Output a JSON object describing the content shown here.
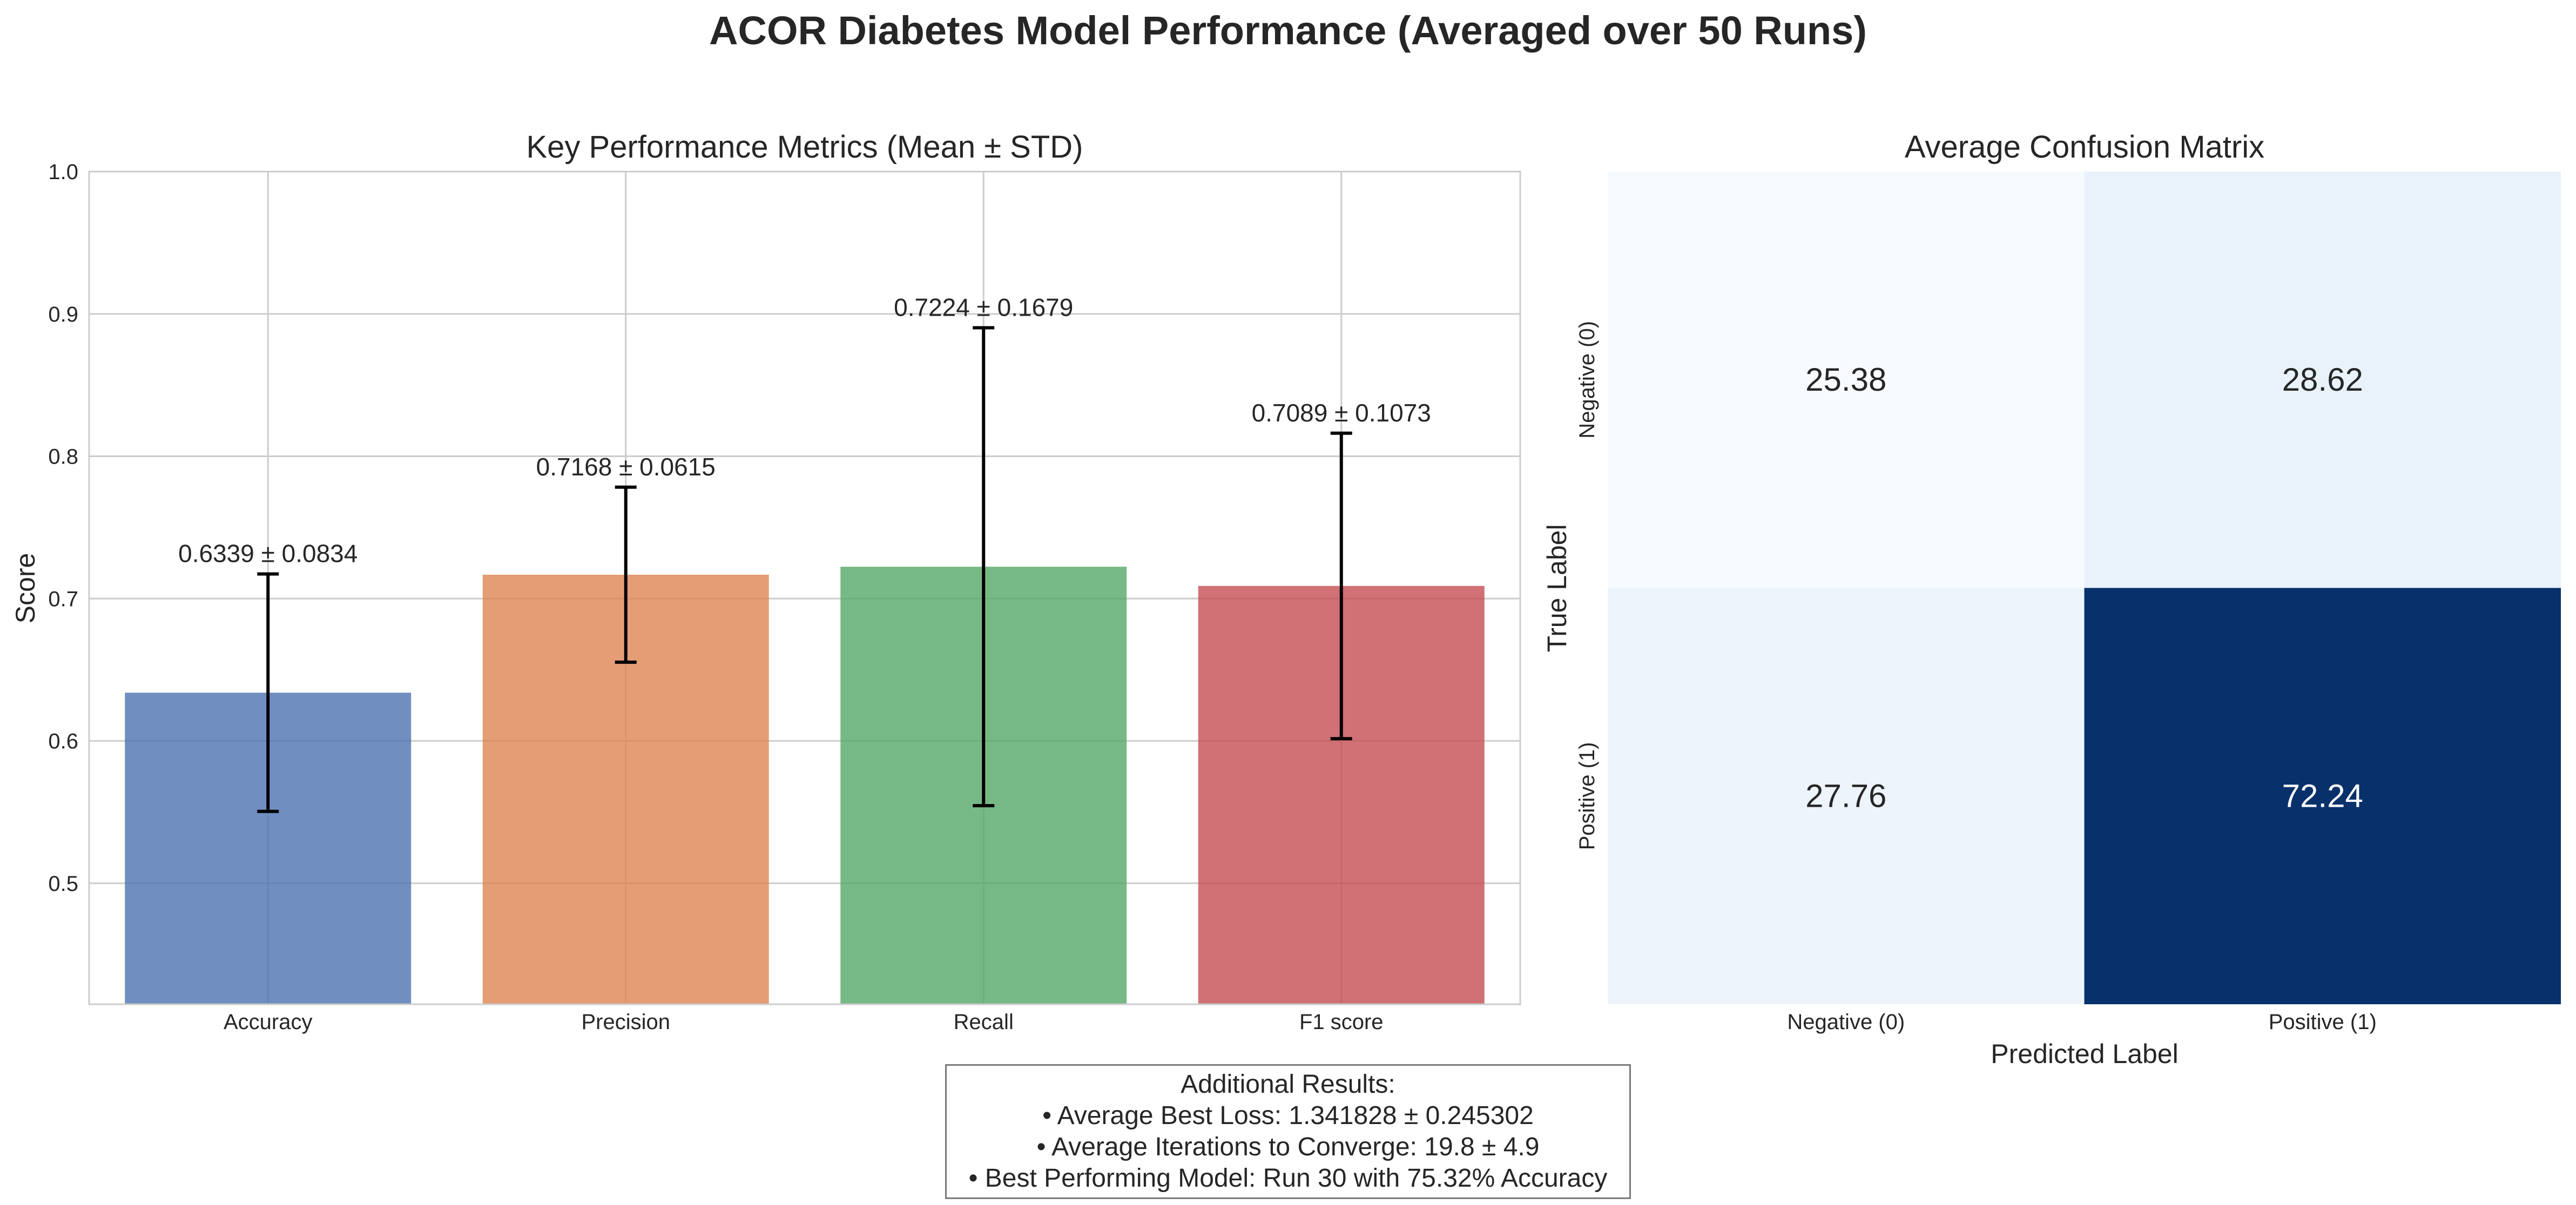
{
  "figure": {
    "title": "ACOR Diabetes Model Performance (Averaged over 50 Runs)"
  },
  "chart_data": [
    {
      "type": "bar",
      "title": "Key Performance Metrics (Mean ± STD)",
      "xlabel": "",
      "ylabel": "Score",
      "categories": [
        "Accuracy",
        "Precision",
        "Recall",
        "F1 score"
      ],
      "values": [
        0.6339,
        0.7168,
        0.7224,
        0.7089
      ],
      "errors": [
        0.0834,
        0.0615,
        0.1679,
        0.1073
      ],
      "data_labels": [
        "0.6339 ± 0.0834",
        "0.7168 ± 0.0615",
        "0.7224 ± 0.1679",
        "0.7089 ± 0.1073"
      ],
      "colors": [
        "#4c72b0",
        "#dd8452",
        "#55a868",
        "#c44e52"
      ],
      "ylim": [
        0.415,
        1.0
      ],
      "yticks": [
        0.5,
        0.6,
        0.7,
        0.8,
        0.9,
        1.0
      ],
      "ytick_labels": [
        "0.5",
        "0.6",
        "0.7",
        "0.8",
        "0.9",
        "1.0"
      ],
      "grid": true
    },
    {
      "type": "heatmap",
      "title": "Average Confusion Matrix",
      "xlabel": "Predicted Label",
      "ylabel": "True Label",
      "x_categories": [
        "Negative (0)",
        "Positive (1)"
      ],
      "y_categories": [
        "Negative (0)",
        "Positive (1)"
      ],
      "values": [
        [
          25.38,
          28.62
        ],
        [
          27.76,
          72.24
        ]
      ],
      "cell_labels": [
        [
          "25.38",
          "28.62"
        ],
        [
          "27.76",
          "72.24"
        ]
      ],
      "colormap": "Blues"
    }
  ],
  "results": {
    "heading": "Additional Results:",
    "lines": [
      "• Average Best Loss: 1.341828 ± 0.245302",
      "• Average Iterations to Converge: 19.8 ± 4.9",
      "• Best Performing Model: Run 30 with 75.32% Accuracy"
    ]
  }
}
